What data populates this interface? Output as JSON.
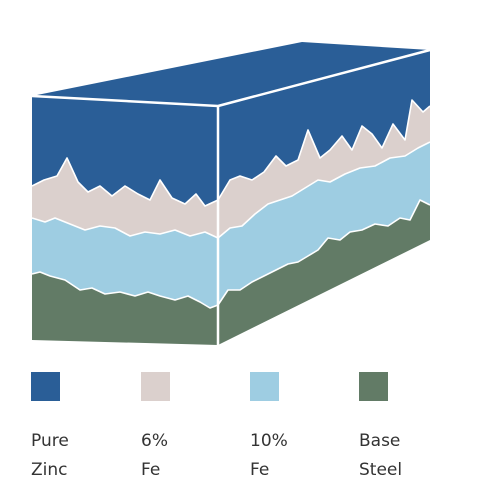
{
  "colors": {
    "pure_zinc": "#2a5e97",
    "six_fe": "#dbd0cd",
    "ten_fe": "#9ecde2",
    "base_steel": "#627b66",
    "edge": "#ffffff"
  },
  "legend": [
    {
      "line1": "Pure",
      "line2": "Zinc",
      "color": "#2a5e97"
    },
    {
      "line1": "6%",
      "line2": "Fe",
      "color": "#dbd0cd"
    },
    {
      "line1": "10%",
      "line2": "Fe",
      "color": "#9ecde2"
    },
    {
      "line1": "Base",
      "line2": "Steel",
      "color": "#627b66"
    }
  ]
}
